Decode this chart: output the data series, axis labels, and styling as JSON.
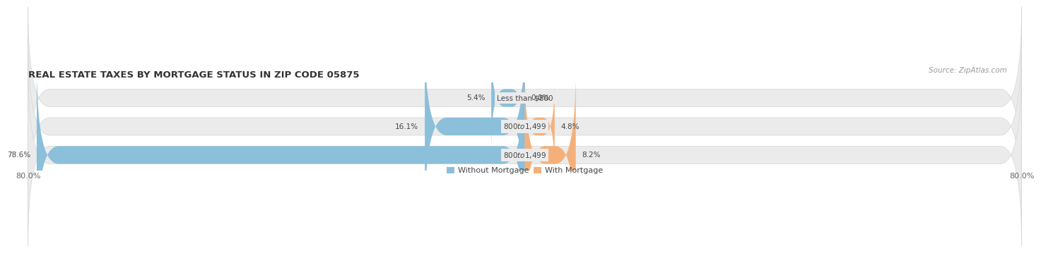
{
  "title": "REAL ESTATE TAXES BY MORTGAGE STATUS IN ZIP CODE 05875",
  "source": "Source: ZipAtlas.com",
  "rows": [
    {
      "label": "Less than $800",
      "without": 5.4,
      "with": 0.0
    },
    {
      "label": "$800 to $1,499",
      "without": 16.1,
      "with": 4.8
    },
    {
      "label": "$800 to $1,499",
      "without": 78.6,
      "with": 8.2
    }
  ],
  "xlim_left": -80.0,
  "xlim_right": 80.0,
  "color_without": "#8BBFDA",
  "color_with": "#F5B07A",
  "bar_height": 0.62,
  "background_color": "#ffffff",
  "bar_bg_color": "#ebebeb",
  "bar_bg_border": "#d5d5d5",
  "legend_labels": [
    "Without Mortgage",
    "With Mortgage"
  ],
  "title_fontsize": 9.5,
  "source_fontsize": 7.5,
  "label_fontsize": 7.5,
  "tick_fontsize": 8,
  "legend_fontsize": 8,
  "row_sep_color": "#ffffff"
}
